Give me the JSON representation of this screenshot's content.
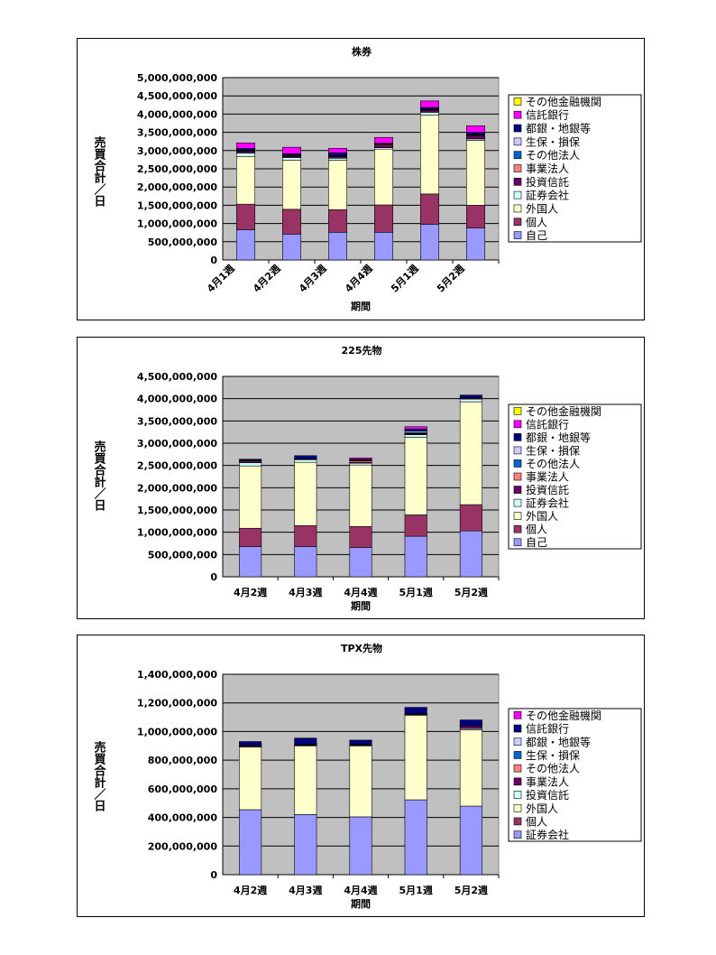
{
  "chart_data": [
    {
      "type": "bar",
      "stacked": true,
      "title": "株券",
      "xlabel": "期間",
      "ylabel": "売買合計／日",
      "ylim": [
        0,
        5000000000
      ],
      "yticks": [
        "0",
        "500,000,000",
        "1,000,000,000",
        "1,500,000,000",
        "2,000,000,000",
        "2,500,000,000",
        "3,000,000,000",
        "3,500,000,000",
        "4,000,000,000",
        "4,500,000,000",
        "5,000,000,000"
      ],
      "grid": true,
      "xtick_rotation": "diagonal",
      "legend_placement": "right",
      "categories": [
        "4月1週",
        "4月2週",
        "4月3週",
        "4月4週",
        "5月1週",
        "5月2週"
      ],
      "series": [
        {
          "name": "自己",
          "color": "#9999ff",
          "values": [
            830000000,
            710000000,
            760000000,
            760000000,
            980000000,
            880000000
          ]
        },
        {
          "name": "個人",
          "color": "#993366",
          "values": [
            700000000,
            680000000,
            620000000,
            750000000,
            830000000,
            620000000
          ]
        },
        {
          "name": "外国人",
          "color": "#ffffcc",
          "values": [
            1310000000,
            1350000000,
            1360000000,
            1530000000,
            2160000000,
            1780000000
          ]
        },
        {
          "name": "証券会社",
          "color": "#ccffff",
          "values": [
            90000000,
            70000000,
            50000000,
            40000000,
            80000000,
            40000000
          ]
        },
        {
          "name": "投資信託",
          "color": "#660066",
          "values": [
            50000000,
            30000000,
            40000000,
            50000000,
            50000000,
            80000000
          ]
        },
        {
          "name": "事業法人",
          "color": "#ff8080",
          "values": [
            10000000,
            20000000,
            10000000,
            30000000,
            20000000,
            20000000
          ]
        },
        {
          "name": "その他法人",
          "color": "#0066cc",
          "values": [
            10000000,
            10000000,
            10000000,
            10000000,
            10000000,
            10000000
          ]
        },
        {
          "name": "生保・損保",
          "color": "#ccccff",
          "values": [
            10000000,
            10000000,
            10000000,
            10000000,
            10000000,
            10000000
          ]
        },
        {
          "name": "都銀・地銀等",
          "color": "#000080",
          "values": [
            50000000,
            30000000,
            80000000,
            20000000,
            40000000,
            60000000
          ]
        },
        {
          "name": "信託銀行",
          "color": "#ff00ff",
          "values": [
            150000000,
            180000000,
            120000000,
            160000000,
            180000000,
            180000000
          ]
        },
        {
          "name": "その他金融機関",
          "color": "#ffff00",
          "values": [
            0,
            0,
            0,
            0,
            0,
            0
          ]
        }
      ]
    },
    {
      "type": "bar",
      "stacked": true,
      "title": "225先物",
      "xlabel": "期間",
      "ylabel": "売買合計／日",
      "ylim": [
        0,
        4500000000
      ],
      "yticks": [
        "0",
        "500,000,000",
        "1,000,000,000",
        "1,500,000,000",
        "2,000,000,000",
        "2,500,000,000",
        "3,000,000,000",
        "3,500,000,000",
        "4,000,000,000",
        "4,500,000,000"
      ],
      "grid": true,
      "legend_placement": "right",
      "categories": [
        "4月2週",
        "4月3週",
        "4月4週",
        "5月1週",
        "5月2週"
      ],
      "series": [
        {
          "name": "自己",
          "color": "#9999ff",
          "values": [
            680000000,
            680000000,
            660000000,
            910000000,
            1030000000
          ]
        },
        {
          "name": "個人",
          "color": "#993366",
          "values": [
            410000000,
            470000000,
            470000000,
            480000000,
            590000000
          ]
        },
        {
          "name": "外国人",
          "color": "#ffffcc",
          "values": [
            1400000000,
            1420000000,
            1380000000,
            1740000000,
            2310000000
          ]
        },
        {
          "name": "証券会社",
          "color": "#ccffff",
          "values": [
            70000000,
            60000000,
            40000000,
            60000000,
            60000000
          ]
        },
        {
          "name": "投資信託",
          "color": "#660066",
          "values": [
            20000000,
            10000000,
            20000000,
            20000000,
            20000000
          ]
        },
        {
          "name": "事業法人",
          "color": "#ff8080",
          "values": [
            20000000,
            0,
            30000000,
            10000000,
            0
          ]
        },
        {
          "name": "その他法人",
          "color": "#0066cc",
          "values": [
            10000000,
            0,
            10000000,
            20000000,
            0
          ]
        },
        {
          "name": "生保・損保",
          "color": "#ccccff",
          "values": [
            10000000,
            10000000,
            10000000,
            30000000,
            10000000
          ]
        },
        {
          "name": "都銀・地銀等",
          "color": "#000080",
          "values": [
            20000000,
            70000000,
            20000000,
            50000000,
            60000000
          ]
        },
        {
          "name": "信託銀行",
          "color": "#ff00ff",
          "values": [
            0,
            0,
            30000000,
            50000000,
            0
          ]
        },
        {
          "name": "その他金融機関",
          "color": "#ffff00",
          "values": [
            0,
            0,
            0,
            0,
            0
          ]
        }
      ]
    },
    {
      "type": "bar",
      "stacked": true,
      "title": "TPX先物",
      "xlabel": "期間",
      "ylabel": "売買合計／日",
      "ylim": [
        0,
        1400000000
      ],
      "yticks": [
        "0",
        "200,000,000",
        "400,000,000",
        "600,000,000",
        "800,000,000",
        "1,000,000,000",
        "1,200,000,000",
        "1,400,000,000"
      ],
      "grid": true,
      "legend_placement": "right",
      "categories": [
        "4月2週",
        "4月3週",
        "4月4週",
        "5月1週",
        "5月2週"
      ],
      "series": [
        {
          "name": "証券会社",
          "color": "#9999ff",
          "values": [
            454000000,
            420000000,
            404000000,
            523000000,
            479000000
          ]
        },
        {
          "name": "個人",
          "color": "#993366",
          "values": [
            0,
            0,
            0,
            0,
            0
          ]
        },
        {
          "name": "外国人",
          "color": "#ffffcc",
          "values": [
            437000000,
            480000000,
            496000000,
            591000000,
            534000000
          ]
        },
        {
          "name": "投資信託",
          "color": "#ccffff",
          "values": [
            5000000,
            4000000,
            4000000,
            5000000,
            8000000
          ]
        },
        {
          "name": "事業法人",
          "color": "#660066",
          "values": [
            8000000,
            4000000,
            4000000,
            2000000,
            18000000
          ]
        },
        {
          "name": "その他法人",
          "color": "#ff8080",
          "values": [
            0,
            0,
            0,
            0,
            0
          ]
        },
        {
          "name": "生保・損保",
          "color": "#0066cc",
          "values": [
            2000000,
            2000000,
            2000000,
            5000000,
            2000000
          ]
        },
        {
          "name": "都銀・地銀等",
          "color": "#ccccff",
          "values": [
            0,
            0,
            0,
            0,
            0
          ]
        },
        {
          "name": "信託銀行",
          "color": "#000080",
          "values": [
            24000000,
            44000000,
            30000000,
            43000000,
            40000000
          ]
        },
        {
          "name": "その他金融機関",
          "color": "#ff00ff",
          "values": [
            0,
            0,
            0,
            0,
            0
          ]
        }
      ]
    }
  ]
}
